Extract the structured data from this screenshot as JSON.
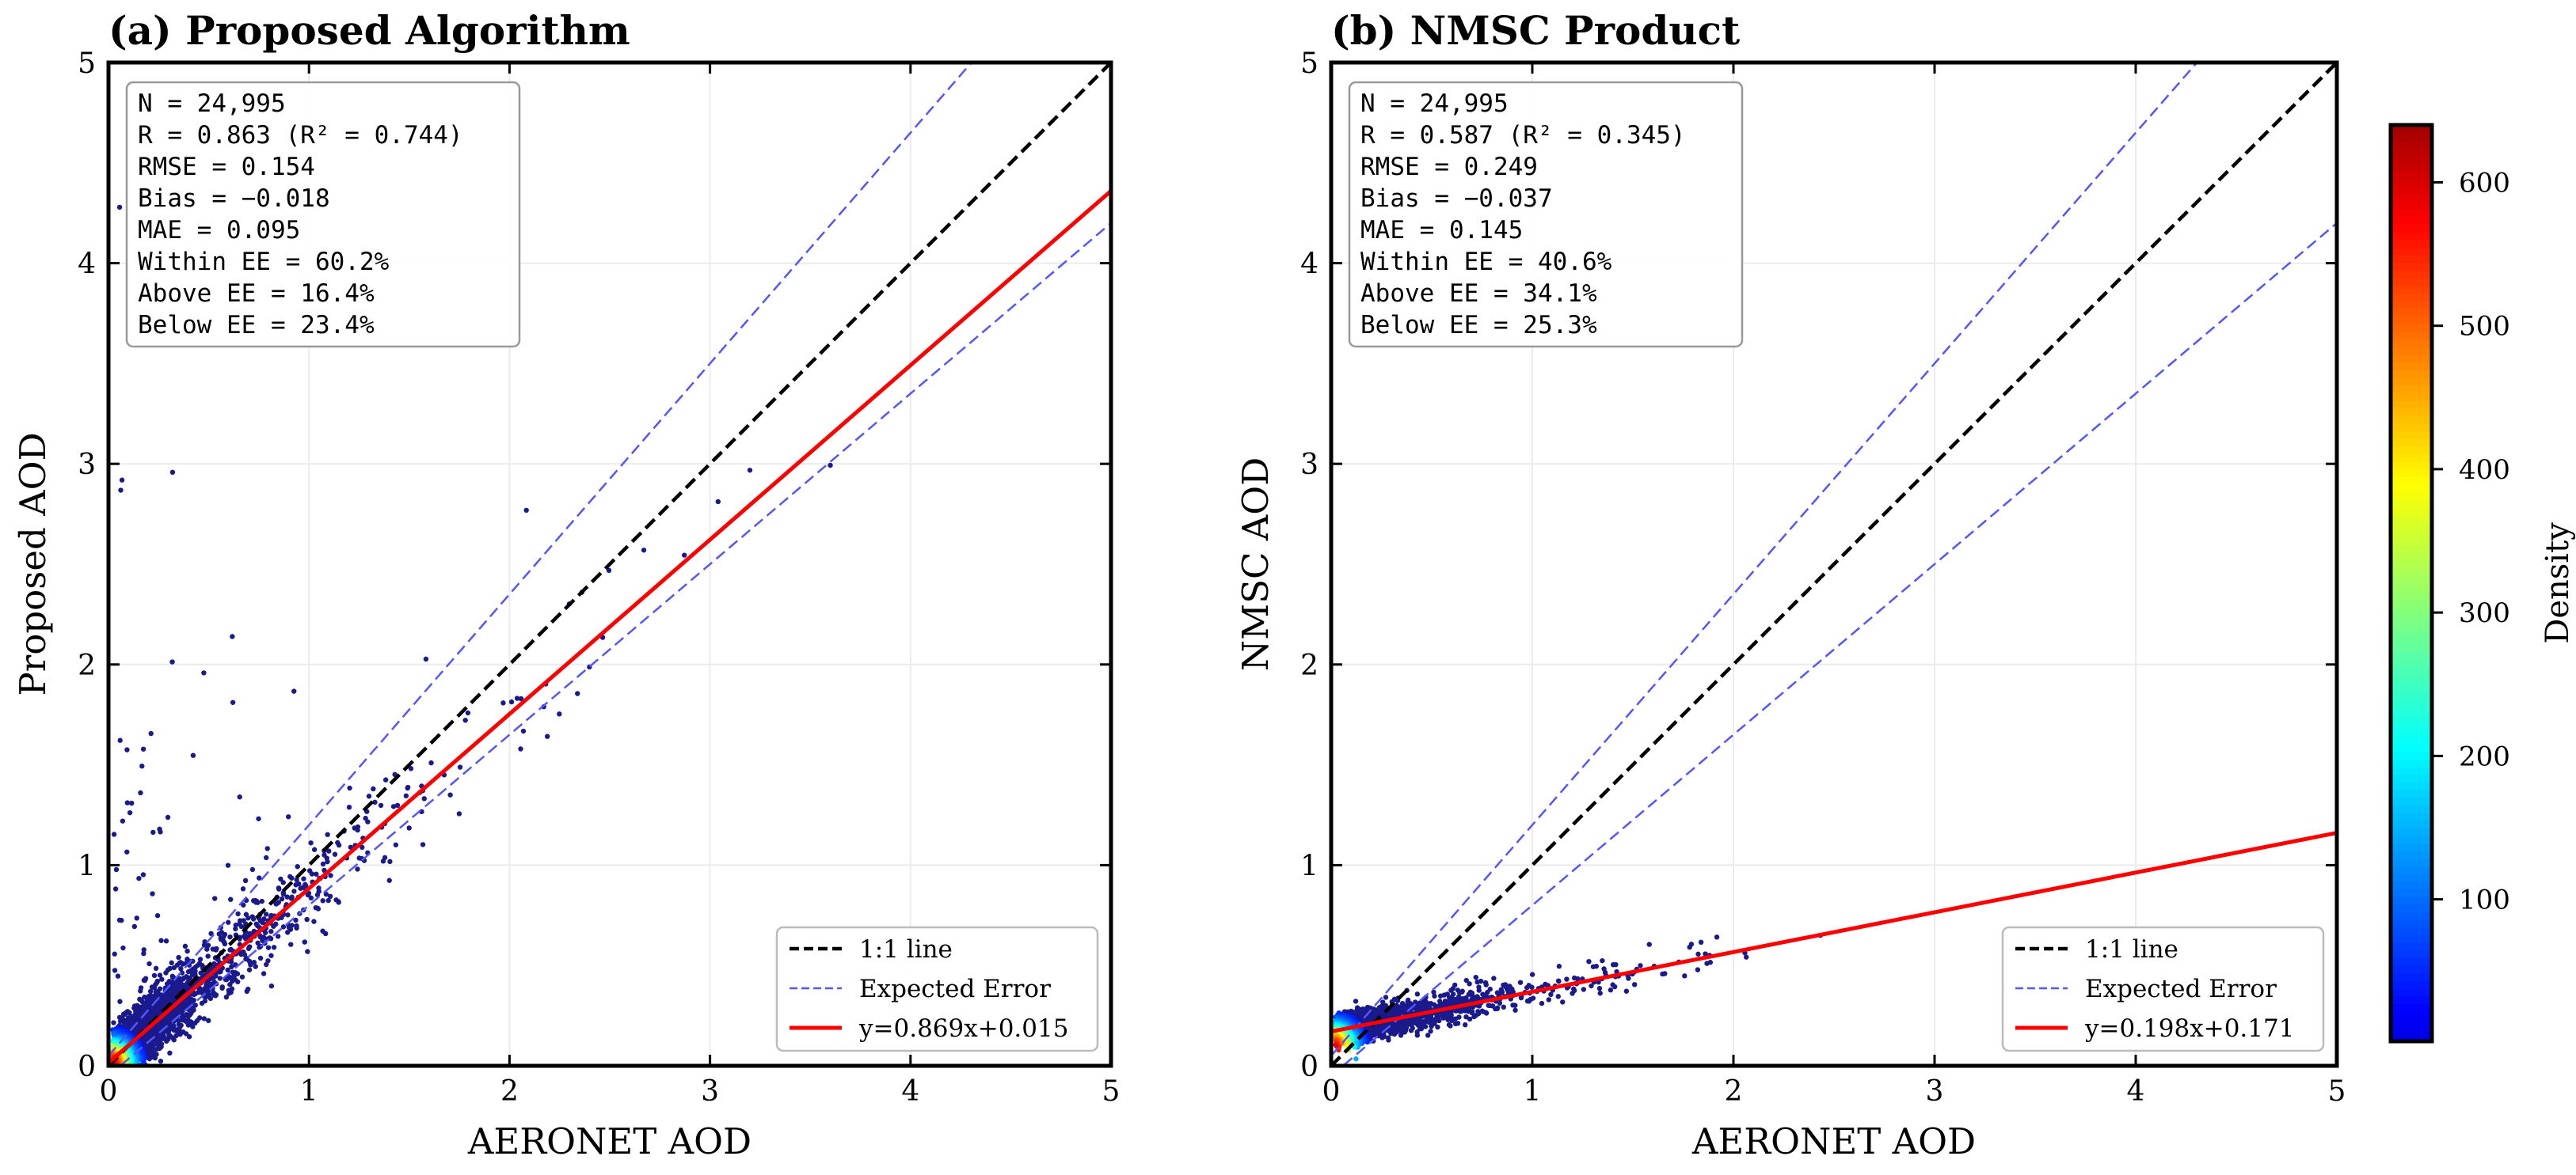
{
  "chart_data": [
    {
      "type": "scatter",
      "title": "(a) Proposed Algorithm",
      "xlabel": "AERONET AOD",
      "ylabel": "Proposed AOD",
      "xlim": [
        0,
        5
      ],
      "ylim": [
        0,
        5
      ],
      "xticks": [
        "0",
        "1",
        "2",
        "3",
        "4",
        "5"
      ],
      "yticks": [
        "0",
        "1",
        "2",
        "3",
        "4",
        "5"
      ],
      "grid": true,
      "stats": [
        "N = 24,995",
        "R = 0.863 (R² = 0.744)",
        "RMSE = 0.154",
        "Bias = −0.018",
        "MAE = 0.095",
        "Within EE = 60.2%",
        "Above EE = 16.4%",
        "Below EE = 23.4%"
      ],
      "fit": {
        "slope": 0.869,
        "intercept": 0.015
      },
      "ee": {
        "abs": 0.05,
        "rel": 0.15
      },
      "legend": {
        "placement": "bottom-right",
        "entries": [
          "1:1 line",
          "Expected Error",
          "y=0.869x+0.015"
        ]
      },
      "points": {
        "n": 24995,
        "spread": 0.16,
        "slope": 0.869,
        "intercept": 0.015
      }
    },
    {
      "type": "scatter",
      "title": "(b) NMSC Product",
      "xlabel": "AERONET AOD",
      "ylabel": "NMSC AOD",
      "xlim": [
        0,
        5
      ],
      "ylim": [
        0,
        5
      ],
      "xticks": [
        "0",
        "1",
        "2",
        "3",
        "4",
        "5"
      ],
      "yticks": [
        "0",
        "1",
        "2",
        "3",
        "4",
        "5"
      ],
      "grid": true,
      "stats": [
        "N = 24,995",
        "R = 0.587 (R² = 0.345)",
        "RMSE = 0.249",
        "Bias = −0.037",
        "MAE = 0.145",
        "Within EE = 40.6%",
        "Above EE = 34.1%",
        "Below EE = 25.3%"
      ],
      "fit": {
        "slope": 0.198,
        "intercept": 0.171
      },
      "ee": {
        "abs": 0.05,
        "rel": 0.15
      },
      "legend": {
        "placement": "bottom-right",
        "entries": [
          "1:1 line",
          "Expected Error",
          "y=0.198x+0.171"
        ]
      },
      "points": {
        "n": 24995,
        "spread": 0.08,
        "slope": 0.198,
        "intercept": 0.171
      }
    }
  ],
  "colorbar": {
    "label": "Density",
    "range": [
      1,
      640
    ],
    "ticks": [
      "100",
      "200",
      "300",
      "400",
      "500",
      "600"
    ],
    "tick_values": [
      100,
      200,
      300,
      400,
      500,
      600
    ],
    "colormap": "jet"
  },
  "colors": {
    "one_to_one": "#000000",
    "ee": "#5555ff",
    "fit": "#ff0000",
    "low": "#1a1a8c"
  }
}
